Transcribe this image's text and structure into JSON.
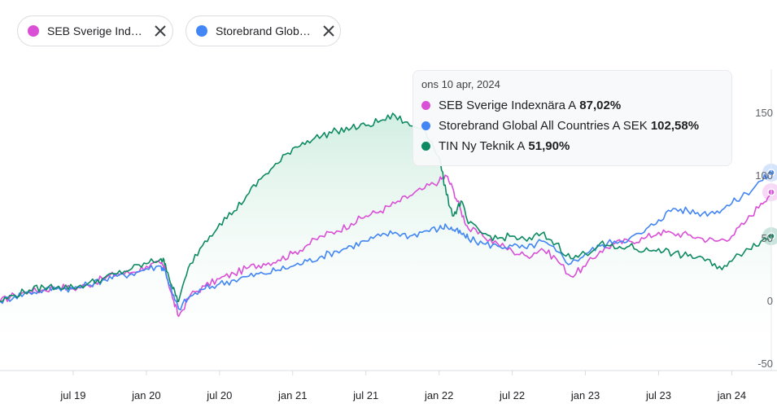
{
  "chips": [
    {
      "label": "SEB Sverige Ind…",
      "color": "#d94fd6"
    },
    {
      "label": "Storebrand Glob…",
      "color": "#4285f4"
    }
  ],
  "tooltip": {
    "date": "ons 10 apr, 2024",
    "rows": [
      {
        "name": "SEB Sverige Indexnära A",
        "value": "87,02%",
        "color": "#d94fd6"
      },
      {
        "name": "Storebrand Global All Countries A SEK",
        "value": "102,58%",
        "color": "#4285f4"
      },
      {
        "name": "TIN Ny Teknik A",
        "value": "51,90%",
        "color": "#0e8a63"
      }
    ]
  },
  "chart_data": {
    "type": "line",
    "title": "",
    "xlabel": "",
    "ylabel": "",
    "x_ticks": [
      "jul 19",
      "jan 20",
      "jul 20",
      "jan 21",
      "jul 21",
      "jan 22",
      "jul 22",
      "jan 23",
      "jul 23",
      "jan 24"
    ],
    "y_ticks": [
      -50,
      0,
      50,
      100,
      150
    ],
    "ylim": [
      -50,
      185
    ],
    "x_range": [
      "2019-01",
      "2024-04"
    ],
    "series": [
      {
        "name": "SEB Sverige Indexnära A",
        "color": "#d94fd6",
        "x": [
          2019.0,
          2019.1,
          2019.2,
          2019.3,
          2019.4,
          2019.5,
          2019.6,
          2019.7,
          2019.8,
          2019.9,
          2020.0,
          2020.1,
          2020.13,
          2020.18,
          2020.22,
          2020.3,
          2020.4,
          2020.5,
          2020.6,
          2020.7,
          2020.8,
          2020.9,
          2021.0,
          2021.1,
          2021.2,
          2021.3,
          2021.4,
          2021.5,
          2021.6,
          2021.7,
          2021.8,
          2021.9,
          2022.0,
          2022.05,
          2022.1,
          2022.15,
          2022.2,
          2022.3,
          2022.4,
          2022.5,
          2022.6,
          2022.7,
          2022.8,
          2022.9,
          2023.0,
          2023.1,
          2023.2,
          2023.3,
          2023.4,
          2023.5,
          2023.6,
          2023.7,
          2023.8,
          2023.9,
          2024.0,
          2024.1,
          2024.2,
          2024.27
        ],
        "values": [
          0,
          5,
          8,
          9,
          12,
          10,
          13,
          18,
          22,
          23,
          28,
          30,
          25,
          2,
          -12,
          5,
          12,
          18,
          22,
          27,
          30,
          33,
          38,
          45,
          52,
          56,
          62,
          68,
          72,
          78,
          84,
          90,
          96,
          100,
          88,
          72,
          58,
          52,
          46,
          40,
          36,
          42,
          34,
          20,
          28,
          40,
          46,
          48,
          50,
          55,
          54,
          53,
          50,
          48,
          52,
          64,
          78,
          87
        ]
      },
      {
        "name": "Storebrand Global All Countries A SEK",
        "color": "#4285f4",
        "x": [
          2019.0,
          2019.1,
          2019.2,
          2019.3,
          2019.4,
          2019.5,
          2019.6,
          2019.7,
          2019.8,
          2019.9,
          2020.0,
          2020.1,
          2020.13,
          2020.18,
          2020.22,
          2020.3,
          2020.4,
          2020.5,
          2020.6,
          2020.7,
          2020.8,
          2020.9,
          2021.0,
          2021.1,
          2021.2,
          2021.3,
          2021.4,
          2021.5,
          2021.6,
          2021.7,
          2021.8,
          2021.9,
          2022.0,
          2022.05,
          2022.1,
          2022.15,
          2022.2,
          2022.3,
          2022.4,
          2022.5,
          2022.6,
          2022.7,
          2022.8,
          2022.9,
          2023.0,
          2023.1,
          2023.2,
          2023.3,
          2023.4,
          2023.5,
          2023.6,
          2023.7,
          2023.8,
          2023.9,
          2024.0,
          2024.1,
          2024.2,
          2024.27
        ],
        "values": [
          0,
          4,
          7,
          9,
          11,
          10,
          13,
          17,
          20,
          22,
          26,
          28,
          24,
          5,
          -6,
          4,
          10,
          14,
          17,
          20,
          22,
          25,
          28,
          32,
          36,
          40,
          44,
          48,
          52,
          55,
          52,
          56,
          58,
          60,
          57,
          54,
          50,
          46,
          44,
          44,
          42,
          48,
          40,
          30,
          38,
          44,
          48,
          50,
          55,
          65,
          74,
          72,
          70,
          72,
          78,
          86,
          96,
          102.6
        ]
      },
      {
        "name": "TIN Ny Teknik A",
        "color": "#0e8a63",
        "fill": "#e6f4ee",
        "x": [
          2019.0,
          2019.1,
          2019.2,
          2019.3,
          2019.4,
          2019.5,
          2019.6,
          2019.7,
          2019.8,
          2019.9,
          2020.0,
          2020.1,
          2020.13,
          2020.18,
          2020.22,
          2020.3,
          2020.4,
          2020.5,
          2020.6,
          2020.7,
          2020.8,
          2020.9,
          2021.0,
          2021.1,
          2021.2,
          2021.3,
          2021.4,
          2021.5,
          2021.6,
          2021.7,
          2021.8,
          2021.9,
          2022.0,
          2022.05,
          2022.1,
          2022.15,
          2022.2,
          2022.3,
          2022.4,
          2022.5,
          2022.6,
          2022.7,
          2022.8,
          2022.9,
          2023.0,
          2023.1,
          2023.2,
          2023.3,
          2023.4,
          2023.5,
          2023.6,
          2023.7,
          2023.8,
          2023.9,
          2024.0,
          2024.1,
          2024.2,
          2024.27
        ],
        "values": [
          0,
          5,
          9,
          11,
          12,
          11,
          14,
          18,
          22,
          26,
          30,
          34,
          30,
          10,
          0,
          30,
          48,
          62,
          72,
          86,
          100,
          110,
          122,
          128,
          132,
          136,
          138,
          140,
          144,
          148,
          140,
          138,
          115,
          85,
          68,
          80,
          62,
          54,
          50,
          52,
          48,
          54,
          46,
          34,
          38,
          46,
          42,
          44,
          40,
          42,
          38,
          36,
          35,
          26,
          32,
          42,
          48,
          51.9
        ]
      }
    ]
  }
}
